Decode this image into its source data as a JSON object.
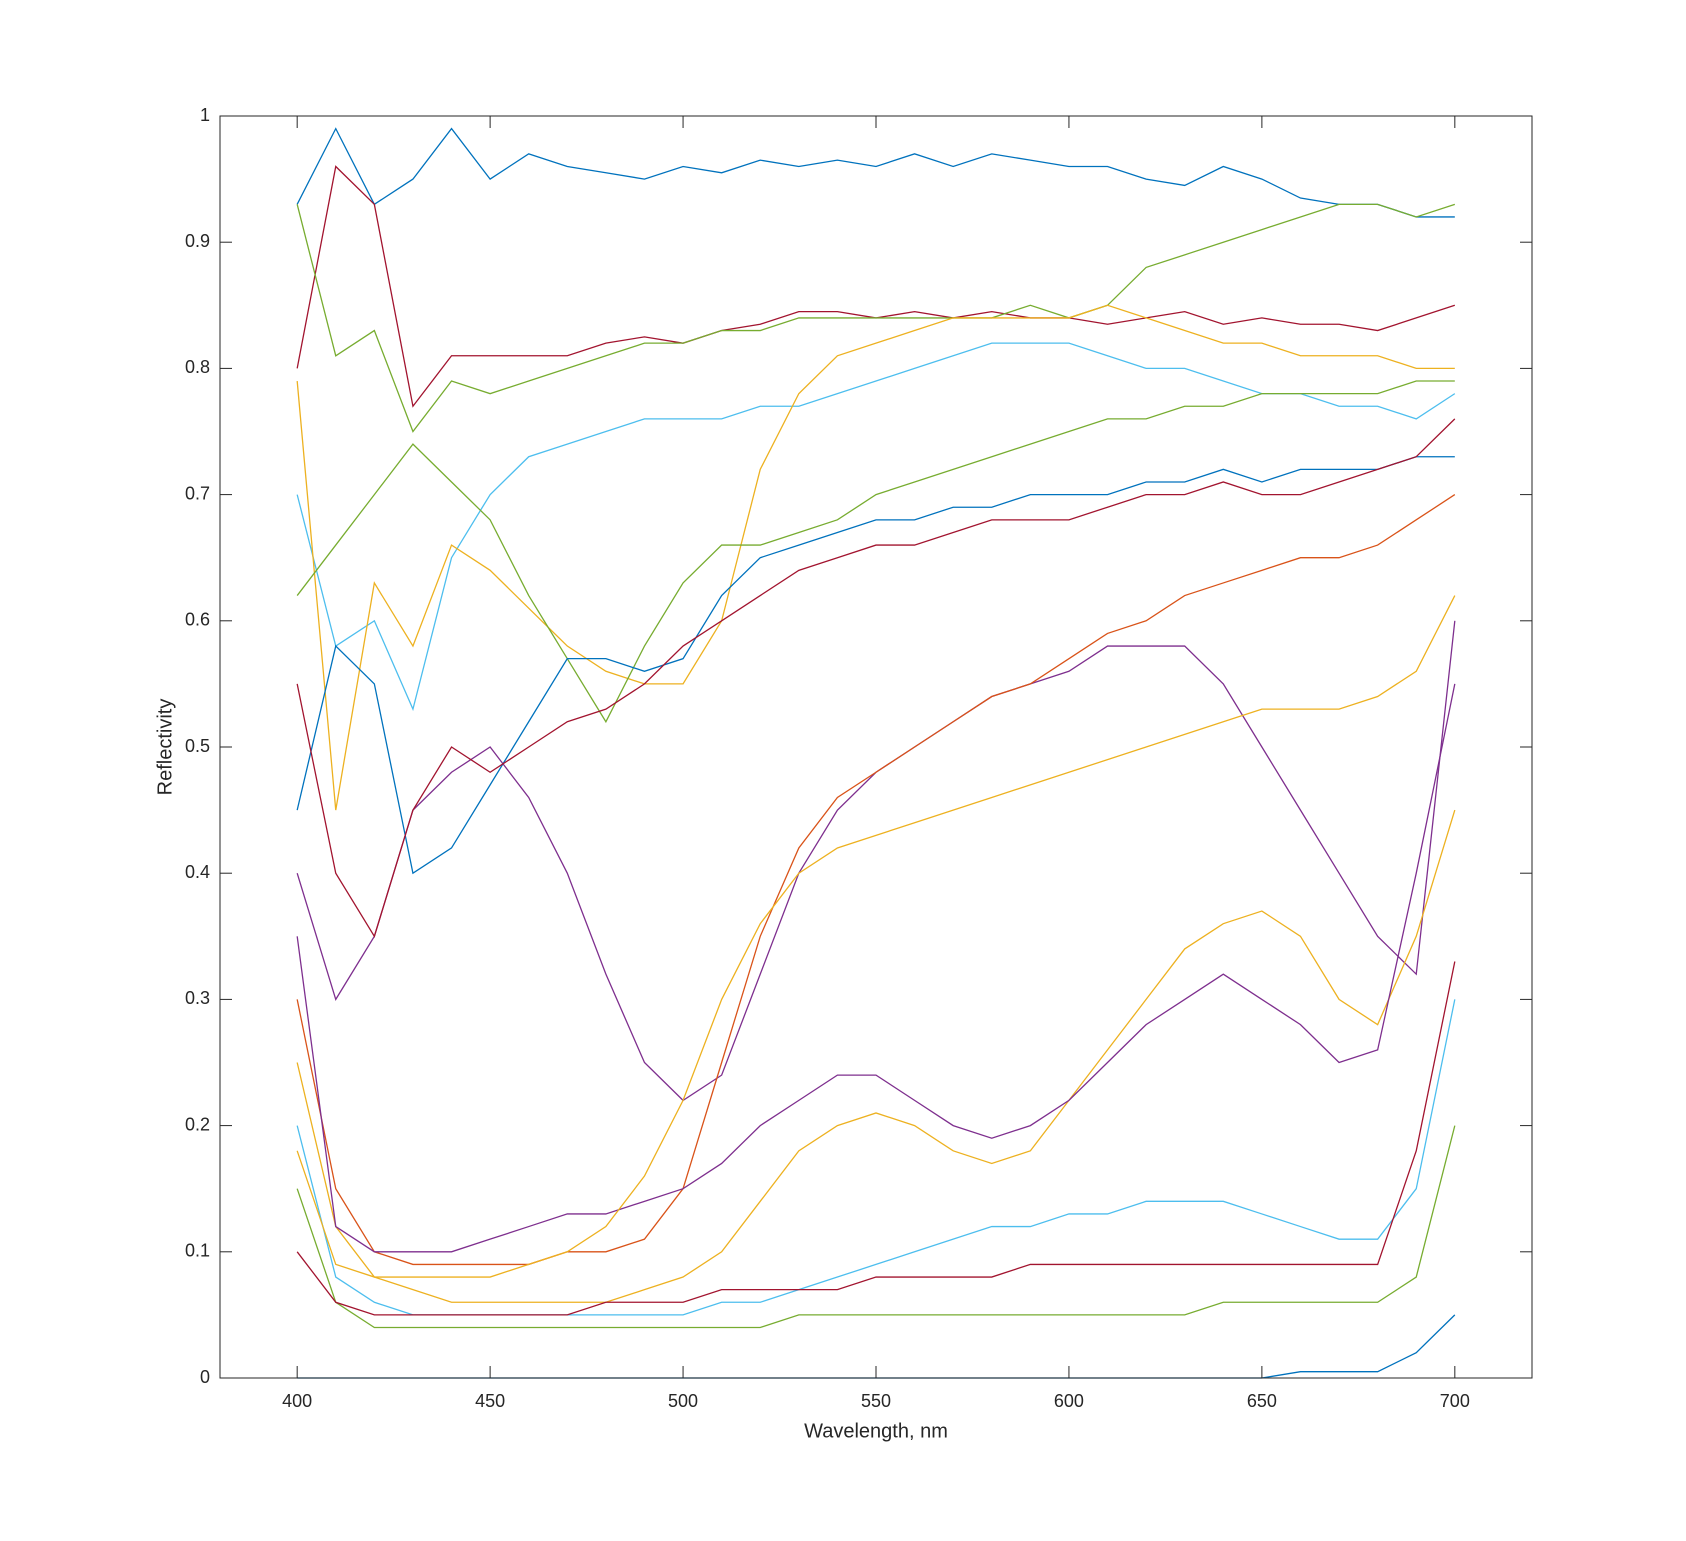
{
  "chart_data": {
    "type": "line",
    "xlabel": "Wavelength, nm",
    "ylabel": "Reflectivity",
    "xlim": [
      380,
      720
    ],
    "ylim": [
      0,
      1
    ],
    "xticks": [
      400,
      450,
      500,
      550,
      600,
      650,
      700
    ],
    "yticks": [
      0,
      0.1,
      0.2,
      0.3,
      0.4,
      0.5,
      0.6,
      0.7,
      0.8,
      0.9,
      1
    ],
    "x": [
      400,
      410,
      420,
      430,
      440,
      450,
      460,
      470,
      480,
      490,
      500,
      510,
      520,
      530,
      540,
      550,
      560,
      570,
      580,
      590,
      600,
      610,
      620,
      630,
      640,
      650,
      660,
      670,
      680,
      690,
      700
    ],
    "series": [
      {
        "color": "#0072BD",
        "values": [
          0.93,
          0.99,
          0.93,
          0.95,
          0.99,
          0.95,
          0.97,
          0.96,
          0.955,
          0.95,
          0.96,
          0.955,
          0.965,
          0.96,
          0.965,
          0.96,
          0.97,
          0.96,
          0.97,
          0.965,
          0.96,
          0.96,
          0.95,
          0.945,
          0.96,
          0.95,
          0.935,
          0.93,
          0.93,
          0.92,
          0.92
        ]
      },
      {
        "color": "#A2142F",
        "values": [
          0.8,
          0.96,
          0.93,
          0.77,
          0.81,
          0.81,
          0.81,
          0.81,
          0.82,
          0.825,
          0.82,
          0.83,
          0.835,
          0.845,
          0.845,
          0.84,
          0.845,
          0.84,
          0.845,
          0.84,
          0.84,
          0.835,
          0.84,
          0.845,
          0.835,
          0.84,
          0.835,
          0.835,
          0.83,
          0.84,
          0.85
        ]
      },
      {
        "color": "#77AC30",
        "values": [
          0.93,
          0.81,
          0.83,
          0.75,
          0.79,
          0.78,
          0.79,
          0.8,
          0.81,
          0.82,
          0.82,
          0.83,
          0.83,
          0.84,
          0.84,
          0.84,
          0.84,
          0.84,
          0.84,
          0.85,
          0.84,
          0.85,
          0.88,
          0.89,
          0.9,
          0.91,
          0.92,
          0.93,
          0.93,
          0.92,
          0.93
        ]
      },
      {
        "color": "#4DBEEE",
        "values": [
          0.7,
          0.58,
          0.6,
          0.53,
          0.65,
          0.7,
          0.73,
          0.74,
          0.75,
          0.76,
          0.76,
          0.76,
          0.77,
          0.77,
          0.78,
          0.79,
          0.8,
          0.81,
          0.82,
          0.82,
          0.82,
          0.81,
          0.8,
          0.8,
          0.79,
          0.78,
          0.78,
          0.77,
          0.77,
          0.76,
          0.78
        ]
      },
      {
        "color": "#EDB120",
        "values": [
          0.79,
          0.45,
          0.63,
          0.58,
          0.66,
          0.64,
          0.61,
          0.58,
          0.56,
          0.55,
          0.55,
          0.6,
          0.72,
          0.78,
          0.81,
          0.82,
          0.83,
          0.84,
          0.84,
          0.84,
          0.84,
          0.85,
          0.84,
          0.83,
          0.82,
          0.82,
          0.81,
          0.81,
          0.81,
          0.8,
          0.8
        ]
      },
      {
        "color": "#77AC30",
        "values": [
          0.62,
          0.66,
          0.7,
          0.74,
          0.71,
          0.68,
          0.62,
          0.57,
          0.52,
          0.58,
          0.63,
          0.66,
          0.66,
          0.67,
          0.68,
          0.7,
          0.71,
          0.72,
          0.73,
          0.74,
          0.75,
          0.76,
          0.76,
          0.77,
          0.77,
          0.78,
          0.78,
          0.78,
          0.78,
          0.79,
          0.79
        ]
      },
      {
        "color": "#0072BD",
        "values": [
          0.45,
          0.58,
          0.55,
          0.4,
          0.42,
          0.47,
          0.52,
          0.57,
          0.57,
          0.56,
          0.57,
          0.62,
          0.65,
          0.66,
          0.67,
          0.68,
          0.68,
          0.69,
          0.69,
          0.7,
          0.7,
          0.7,
          0.71,
          0.71,
          0.72,
          0.71,
          0.72,
          0.72,
          0.72,
          0.73,
          0.73
        ]
      },
      {
        "color": "#7E2F8E",
        "values": [
          0.4,
          0.3,
          0.35,
          0.45,
          0.48,
          0.5,
          0.46,
          0.4,
          0.32,
          0.25,
          0.22,
          0.24,
          0.32,
          0.4,
          0.45,
          0.48,
          0.5,
          0.52,
          0.54,
          0.55,
          0.56,
          0.58,
          0.58,
          0.58,
          0.55,
          0.5,
          0.45,
          0.4,
          0.35,
          0.32,
          0.6
        ]
      },
      {
        "color": "#D95319",
        "values": [
          0.3,
          0.15,
          0.1,
          0.09,
          0.09,
          0.09,
          0.09,
          0.1,
          0.1,
          0.11,
          0.15,
          0.25,
          0.35,
          0.42,
          0.46,
          0.48,
          0.5,
          0.52,
          0.54,
          0.55,
          0.57,
          0.59,
          0.6,
          0.62,
          0.63,
          0.64,
          0.65,
          0.65,
          0.66,
          0.68,
          0.7
        ]
      },
      {
        "color": "#EDB120",
        "values": [
          0.25,
          0.12,
          0.08,
          0.07,
          0.06,
          0.06,
          0.06,
          0.06,
          0.06,
          0.07,
          0.08,
          0.1,
          0.14,
          0.18,
          0.2,
          0.21,
          0.2,
          0.18,
          0.17,
          0.18,
          0.22,
          0.26,
          0.3,
          0.34,
          0.36,
          0.37,
          0.35,
          0.3,
          0.28,
          0.35,
          0.45
        ]
      },
      {
        "color": "#4DBEEE",
        "values": [
          0.2,
          0.08,
          0.06,
          0.05,
          0.05,
          0.05,
          0.05,
          0.05,
          0.05,
          0.05,
          0.05,
          0.06,
          0.06,
          0.07,
          0.08,
          0.09,
          0.1,
          0.11,
          0.12,
          0.12,
          0.13,
          0.13,
          0.14,
          0.14,
          0.14,
          0.13,
          0.12,
          0.11,
          0.11,
          0.15,
          0.3
        ]
      },
      {
        "color": "#77AC30",
        "values": [
          0.15,
          0.06,
          0.04,
          0.04,
          0.04,
          0.04,
          0.04,
          0.04,
          0.04,
          0.04,
          0.04,
          0.04,
          0.04,
          0.05,
          0.05,
          0.05,
          0.05,
          0.05,
          0.05,
          0.05,
          0.05,
          0.05,
          0.05,
          0.05,
          0.06,
          0.06,
          0.06,
          0.06,
          0.06,
          0.08,
          0.2
        ]
      },
      {
        "color": "#7E2F8E",
        "values": [
          0.35,
          0.12,
          0.1,
          0.1,
          0.1,
          0.11,
          0.12,
          0.13,
          0.13,
          0.14,
          0.15,
          0.17,
          0.2,
          0.22,
          0.24,
          0.24,
          0.22,
          0.2,
          0.19,
          0.2,
          0.22,
          0.25,
          0.28,
          0.3,
          0.32,
          0.3,
          0.28,
          0.25,
          0.26,
          0.4,
          0.55
        ]
      },
      {
        "color": "#0072BD",
        "values": [
          0,
          0,
          0,
          0,
          0,
          0,
          0,
          0,
          0,
          0,
          0,
          0,
          0,
          0,
          0,
          0,
          0,
          0,
          0,
          0,
          0,
          0,
          0,
          0,
          0,
          0,
          0.005,
          0.005,
          0.005,
          0.02,
          0.05
        ]
      },
      {
        "color": "#A2142F",
        "values": [
          0.55,
          0.4,
          0.35,
          0.45,
          0.5,
          0.48,
          0.5,
          0.52,
          0.53,
          0.55,
          0.58,
          0.6,
          0.62,
          0.64,
          0.65,
          0.66,
          0.66,
          0.67,
          0.68,
          0.68,
          0.68,
          0.69,
          0.7,
          0.7,
          0.71,
          0.7,
          0.7,
          0.71,
          0.72,
          0.73,
          0.76
        ]
      },
      {
        "color": "#EDB120",
        "values": [
          0.18,
          0.09,
          0.08,
          0.08,
          0.08,
          0.08,
          0.09,
          0.1,
          0.12,
          0.16,
          0.22,
          0.3,
          0.36,
          0.4,
          0.42,
          0.43,
          0.44,
          0.45,
          0.46,
          0.47,
          0.48,
          0.49,
          0.5,
          0.51,
          0.52,
          0.53,
          0.53,
          0.53,
          0.54,
          0.56,
          0.62
        ]
      },
      {
        "color": "#A2142F",
        "values": [
          0.1,
          0.06,
          0.05,
          0.05,
          0.05,
          0.05,
          0.05,
          0.05,
          0.06,
          0.06,
          0.06,
          0.07,
          0.07,
          0.07,
          0.07,
          0.08,
          0.08,
          0.08,
          0.08,
          0.09,
          0.09,
          0.09,
          0.09,
          0.09,
          0.09,
          0.09,
          0.09,
          0.09,
          0.09,
          0.18,
          0.33
        ]
      }
    ]
  }
}
